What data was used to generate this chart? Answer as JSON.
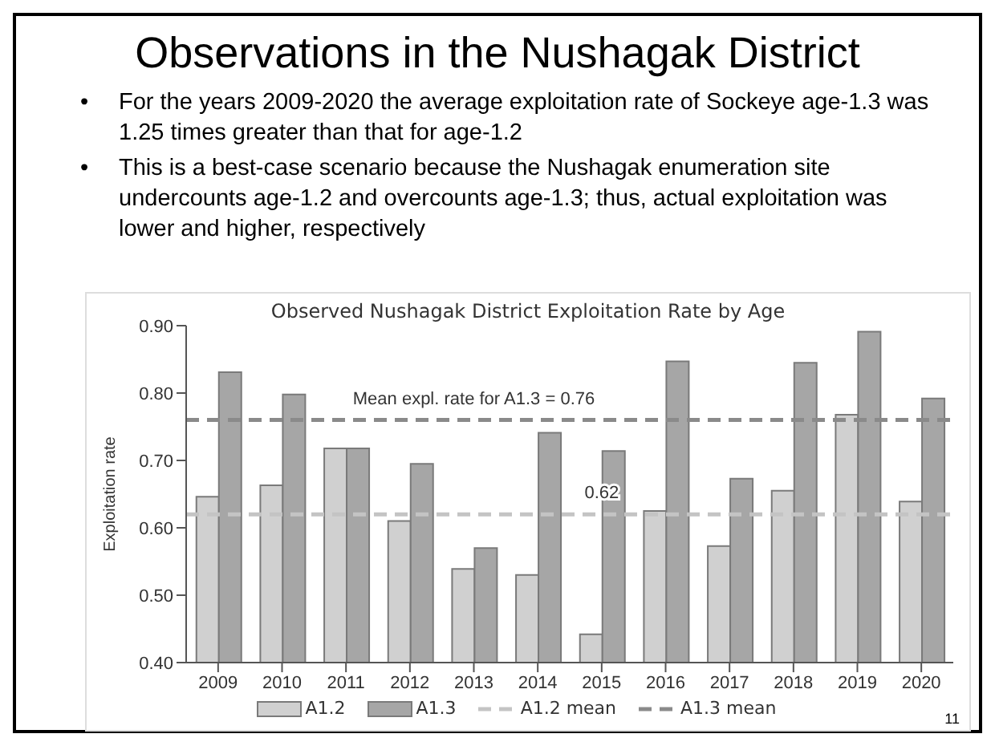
{
  "chart_data": {
    "type": "bar",
    "title": "Observations in the Nushagak District",
    "subtitle": "Observed Nushagak District Exploitation Rate by Age",
    "ylabel": "Exploitation rate",
    "categories": [
      "2009",
      "2010",
      "2011",
      "2012",
      "2013",
      "2014",
      "2015",
      "2016",
      "2017",
      "2018",
      "2019",
      "2020"
    ],
    "series": [
      {
        "name": "A1.2",
        "color": "#d0d0d0",
        "values": [
          0.646,
          0.663,
          0.718,
          0.61,
          0.539,
          0.53,
          0.442,
          0.625,
          0.573,
          0.655,
          0.768,
          0.639
        ]
      },
      {
        "name": "A1.3",
        "color": "#a6a6a6",
        "values": [
          0.831,
          0.798,
          0.718,
          0.695,
          0.57,
          0.741,
          0.714,
          0.847,
          0.673,
          0.845,
          0.891,
          0.792
        ]
      }
    ],
    "ref_lines": [
      {
        "axis": "y",
        "value": 0.62,
        "label": "A1.2 mean",
        "color": "#c4c4c4",
        "line_style": "dashed"
      },
      {
        "axis": "y",
        "value": 0.76,
        "label": "A1.3 mean",
        "color": "#8a8a8a",
        "line_style": "dashed"
      }
    ],
    "ylim": [
      0.4,
      0.9
    ],
    "yticks": [
      {
        "value": 0.4,
        "label": "0.40"
      },
      {
        "value": 0.5,
        "label": "0.50"
      },
      {
        "value": 0.6,
        "label": "0.60"
      },
      {
        "value": 0.7,
        "label": "0.70"
      },
      {
        "value": 0.8,
        "label": "0.80"
      },
      {
        "value": 0.9,
        "label": "0.90"
      }
    ],
    "annotations": [
      "• For the years 2009-2020 the average exploitation rate of Sockeye age-1.3 was 1.25 times greater than that for age-1.2",
      "• This is a best-case scenario because the Nushagak enumeration site undercounts age-1.2 and overcounts age-1.3; thus, actual exploitation was lower and higher, respectively",
      {
        "text": "Mean expl. rate for A1.3 = 0.76",
        "x": "2013",
        "y": 0.76
      },
      {
        "text": "0.62",
        "x": "2015",
        "y": 0.62
      },
      "11"
    ],
    "grid": false,
    "legend": "bottom"
  }
}
